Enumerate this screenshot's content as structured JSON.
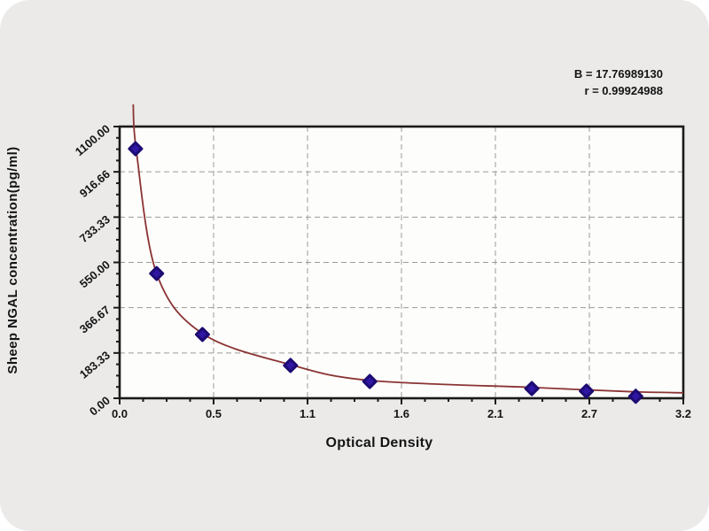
{
  "colors": {
    "page_background": "#ffffff",
    "panel_background": "#ebeae9",
    "plot_background": "#fdfdfb",
    "frame": "#1a1a1a",
    "grid": "#9b9b9b",
    "curve": "#8a3434",
    "marker_fill": "#2f17a3",
    "marker_stroke": "#1d0b72",
    "text": "#141414"
  },
  "chart_data": {
    "type": "scatter",
    "title": "",
    "xlabel": "Optical Density",
    "ylabel": "Sheep NGAL concentration(pg/ml)",
    "xlim": [
      0,
      3.2
    ],
    "ylim": [
      0,
      1100
    ],
    "grid": {
      "show": true,
      "style": "dashed"
    },
    "x_ticks": [
      {
        "value": 0.0,
        "label": "0.0"
      },
      {
        "value": 0.5333,
        "label": "0.5"
      },
      {
        "value": 1.0667,
        "label": "1.1"
      },
      {
        "value": 1.6,
        "label": "1.6"
      },
      {
        "value": 2.1333,
        "label": "2.1"
      },
      {
        "value": 2.6667,
        "label": "2.7"
      },
      {
        "value": 3.2,
        "label": "3.2"
      }
    ],
    "y_ticks": [
      {
        "value": 0,
        "label": "0.00"
      },
      {
        "value": 183.33,
        "label": "183.33"
      },
      {
        "value": 366.67,
        "label": "366.67"
      },
      {
        "value": 550,
        "label": "550.00"
      },
      {
        "value": 733.33,
        "label": "733.33"
      },
      {
        "value": 916.66,
        "label": "916.66"
      },
      {
        "value": 1100,
        "label": "1100.00"
      }
    ],
    "minor_subdivisions": 4,
    "series": [
      {
        "name": "standards",
        "marker": "diamond",
        "points": [
          [
            0.09,
            1010
          ],
          [
            0.21,
            505
          ],
          [
            0.47,
            258
          ],
          [
            0.97,
            133
          ],
          [
            1.42,
            68
          ],
          [
            2.34,
            39
          ],
          [
            2.65,
            29
          ],
          [
            2.93,
            8
          ]
        ]
      }
    ],
    "fit_curve": {
      "points": [
        [
          0.077,
          1190
        ],
        [
          0.095,
          1000
        ],
        [
          0.21,
          505
        ],
        [
          0.47,
          262
        ],
        [
          0.97,
          136
        ],
        [
          1.42,
          72
        ],
        [
          2.34,
          44
        ],
        [
          2.65,
          34
        ],
        [
          2.93,
          26
        ],
        [
          3.2,
          22
        ]
      ]
    },
    "annotation_lines": [
      "B = 17.76989130",
      "r = 0.99924988"
    ],
    "legend": {
      "show": false
    }
  }
}
